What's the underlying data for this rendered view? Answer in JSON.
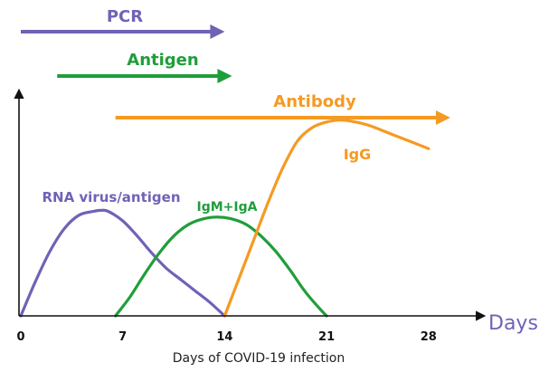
{
  "chart_data": {
    "type": "line",
    "xlabel": "Days of COVID-19 infection",
    "x_axis_end_label": "Days",
    "x_ticks": [
      0,
      7,
      14,
      21,
      28
    ],
    "xlim": [
      0,
      30
    ],
    "ylim": [
      0,
      1
    ],
    "grid": false,
    "colors": {
      "pcr": "#6f63b6",
      "antigen": "#1f9e3a",
      "antibody": "#f59a23",
      "rna": "#6f63b6",
      "igm": "#1f9e3a",
      "igg": "#f59a23",
      "axis": "#111111"
    },
    "detection_windows": [
      {
        "name": "PCR",
        "start": 0,
        "end": 14,
        "color_key": "pcr"
      },
      {
        "name": "Antigen",
        "start": 2.5,
        "end": 14.5,
        "color_key": "antigen"
      },
      {
        "name": "Antibody",
        "start": 6.5,
        "end": 29.5,
        "color_key": "antibody"
      }
    ],
    "series": [
      {
        "name": "RNA virus/antigen",
        "color_key": "rna",
        "x": [
          0,
          1,
          2,
          3,
          4,
          5,
          5.5,
          6,
          7,
          8,
          9,
          10,
          11,
          12,
          13,
          14
        ],
        "y": [
          0,
          0.18,
          0.34,
          0.46,
          0.53,
          0.55,
          0.555,
          0.55,
          0.5,
          0.42,
          0.33,
          0.25,
          0.19,
          0.13,
          0.07,
          0
        ]
      },
      {
        "name": "IgM+IgA",
        "color_key": "igm",
        "x": [
          6.5,
          7.5,
          8.5,
          9.5,
          10.5,
          11.5,
          12.5,
          13.5,
          14.5,
          15.5,
          16.5,
          17.5,
          18.5,
          19.5,
          20.5,
          21
        ],
        "y": [
          0,
          0.1,
          0.22,
          0.33,
          0.42,
          0.48,
          0.51,
          0.52,
          0.51,
          0.48,
          0.42,
          0.34,
          0.24,
          0.13,
          0.04,
          0
        ]
      },
      {
        "name": "IgG",
        "color_key": "igg",
        "x": [
          14,
          15,
          16,
          17,
          18,
          19,
          20,
          21,
          22,
          23,
          24,
          25,
          26,
          27,
          28
        ],
        "y": [
          0,
          0.2,
          0.4,
          0.6,
          0.78,
          0.92,
          0.99,
          1.02,
          1.03,
          1.02,
          1.0,
          0.97,
          0.94,
          0.91,
          0.88
        ]
      }
    ]
  }
}
